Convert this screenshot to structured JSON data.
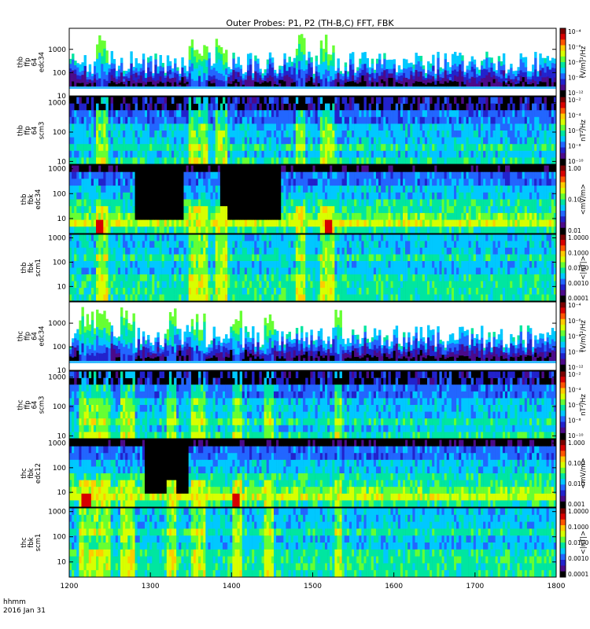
{
  "chart_data": {
    "type": "heatmap",
    "title": "Outer Probes: P1, P2 (TH-B,C) FFT, FBK",
    "x_axis": {
      "ticks": [
        "1200",
        "1300",
        "1400",
        "1500",
        "1600",
        "1700",
        "1800"
      ],
      "range": [
        1200,
        1800
      ],
      "label_line1": "hhmm",
      "label_line2": "2016 Jan 31"
    },
    "panels": [
      {
        "ylabel": [
          "thb",
          "ffp",
          "64",
          "edc34"
        ],
        "yticks": [
          "1000",
          "100",
          "10"
        ],
        "yrange": [
          10,
          8000
        ],
        "kind": "fft_e",
        "cbar": {
          "label": "(V/m)²/Hz",
          "ticks": [
            "10⁻⁴",
            "10⁻⁶",
            "10⁻⁸",
            "10⁻¹⁰",
            "10⁻¹²"
          ]
        }
      },
      {
        "ylabel": [
          "thb",
          "ffp",
          "64",
          "scm3"
        ],
        "yticks": [
          "1000",
          "100",
          "10"
        ],
        "yrange": [
          8,
          1600
        ],
        "kind": "fft_b",
        "cbar": {
          "label": "nT²/Hz",
          "ticks": [
            "10⁻²",
            "10⁻⁴",
            "10⁻⁶",
            "10⁻⁸",
            "10⁻¹⁰"
          ]
        }
      },
      {
        "ylabel": [
          "thb",
          "fbk",
          "edc34"
        ],
        "yticks": [
          "1000",
          "100",
          "10"
        ],
        "yrange": [
          2.5,
          1400
        ],
        "kind": "fbk_e",
        "cbar": {
          "label": "<mV/m>",
          "ticks": [
            "1.00",
            "0.10",
            "0.01"
          ]
        }
      },
      {
        "ylabel": [
          "thb",
          "fbk",
          "scm1"
        ],
        "yticks": [
          "1000",
          "100",
          "10"
        ],
        "yrange": [
          2.5,
          1400
        ],
        "kind": "fbk_b",
        "cbar": {
          "label": "<|nT|>",
          "ticks": [
            "1.0000",
            "0.1000",
            "0.0100",
            "0.0010",
            "0.0001"
          ]
        }
      },
      {
        "ylabel": [
          "thc",
          "ffp",
          "64",
          "edc34"
        ],
        "yticks": [
          "1000",
          "100",
          "10"
        ],
        "yrange": [
          10,
          8000
        ],
        "kind": "fft_e",
        "cbar": {
          "label": "(V/m)²/Hz",
          "ticks": [
            "10⁻⁴",
            "10⁻⁶",
            "10⁻⁸",
            "10⁻¹⁰",
            "10⁻¹²"
          ]
        }
      },
      {
        "ylabel": [
          "thc",
          "ffp",
          "64",
          "scm3"
        ],
        "yticks": [
          "1000",
          "100",
          "10"
        ],
        "yrange": [
          8,
          1600
        ],
        "kind": "fft_b",
        "cbar": {
          "label": "nT²/Hz",
          "ticks": [
            "10⁻²",
            "10⁻⁴",
            "10⁻⁶",
            "10⁻⁸",
            "10⁻¹⁰"
          ]
        }
      },
      {
        "ylabel": [
          "thc",
          "fbk",
          "edc12"
        ],
        "yticks": [
          "1000",
          "100",
          "10"
        ],
        "yrange": [
          2.5,
          1400
        ],
        "kind": "fbk_e",
        "cbar": {
          "label": "<mV/m>",
          "ticks": [
            "1.000",
            "0.100",
            "0.010",
            "0.001"
          ]
        }
      },
      {
        "ylabel": [
          "thc",
          "fbk",
          "scm1"
        ],
        "yticks": [
          "1000",
          "100",
          "10"
        ],
        "yrange": [
          2.5,
          1400
        ],
        "kind": "fbk_b",
        "cbar": {
          "label": "<|nT|>",
          "ticks": [
            "1.0000",
            "0.1000",
            "0.0100",
            "0.0010",
            "0.0001"
          ]
        }
      }
    ],
    "colormap": [
      "#7a0000",
      "#d80000",
      "#ff5500",
      "#ffcc00",
      "#d8ff00",
      "#66ff33",
      "#00e6a0",
      "#00c8ff",
      "#2266ff",
      "#2222cc",
      "#4b0a8a",
      "#000000"
    ]
  }
}
